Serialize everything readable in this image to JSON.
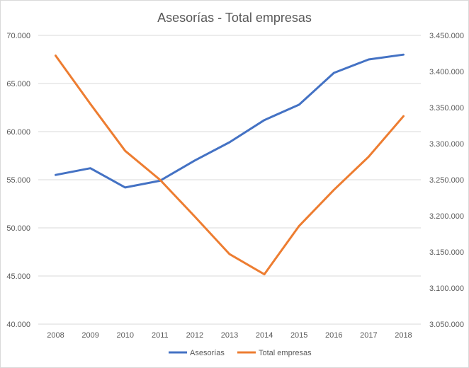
{
  "chart_data": {
    "type": "line",
    "title": "Asesorías - Total empresas",
    "categories": [
      "2008",
      "2009",
      "2010",
      "2011",
      "2012",
      "2013",
      "2014",
      "2015",
      "2016",
      "2017",
      "2018"
    ],
    "series": [
      {
        "name": "Asesorías",
        "axis": "left",
        "color": "#4472C4",
        "values": [
          55500,
          56200,
          54200,
          54900,
          57000,
          58900,
          61200,
          62800,
          66100,
          67500,
          68000
        ]
      },
      {
        "name": "Total empresas",
        "axis": "right",
        "color": "#ED7D31",
        "values": [
          3422000,
          3355000,
          3290000,
          3250000,
          3199000,
          3147000,
          3119000,
          3186000,
          3236000,
          3282000,
          3338000
        ]
      }
    ],
    "y_left": {
      "ylim": [
        40000,
        70000
      ],
      "ticks": [
        40000,
        45000,
        50000,
        55000,
        60000,
        65000,
        70000
      ],
      "tick_labels": [
        "40.000",
        "45.000",
        "50.000",
        "55.000",
        "60.000",
        "65.000",
        "70.000"
      ]
    },
    "y_right": {
      "ylim": [
        3050000,
        3450000
      ],
      "ticks": [
        3050000,
        3100000,
        3150000,
        3200000,
        3250000,
        3300000,
        3350000,
        3400000,
        3450000
      ],
      "tick_labels": [
        "3.050.000",
        "3.100.000",
        "3.150.000",
        "3.200.000",
        "3.250.000",
        "3.300.000",
        "3.350.000",
        "3.400.000",
        "3.450.000"
      ]
    },
    "grid": true,
    "legend_position": "bottom"
  }
}
